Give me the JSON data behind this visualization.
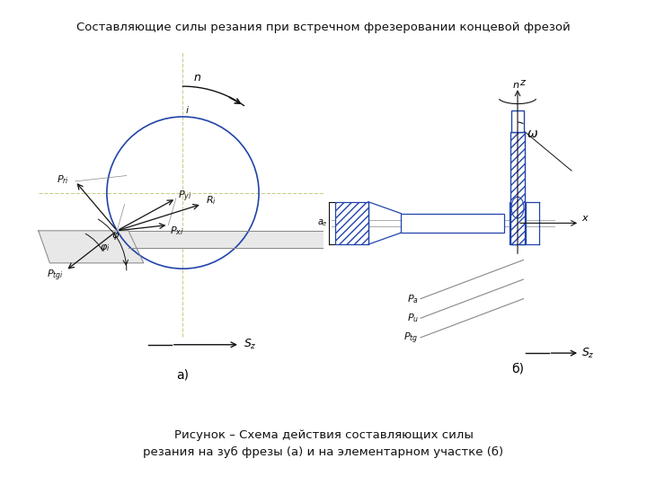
{
  "title": "Составляющие силы резания при встречном фрезеровании концевой фрезой",
  "caption": "Рисунок – Схема действия составляющих силы\nрезания на зуб фрезы (а) и на элементарном участке (б)",
  "label_a": "а)",
  "label_b": "б)",
  "blue": "#2244aa",
  "gray": "#888888",
  "black": "#111111",
  "axis_color": "#cccc88",
  "bg": "#ffffff"
}
